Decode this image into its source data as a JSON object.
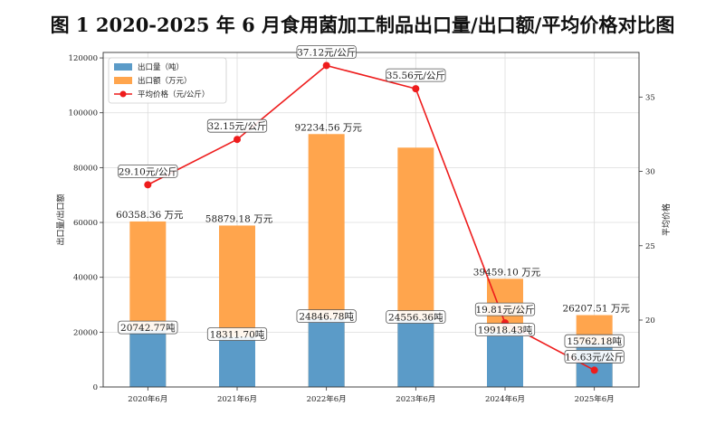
{
  "title": "图 1 2020-2025 年 6 月食用菌加工制品出口量/出口额/平均价格对比图",
  "chart_data": {
    "type": "bar",
    "categories": [
      "2020年6月",
      "2021年6月",
      "2022年6月",
      "2023年6月",
      "2024年6月",
      "2025年6月"
    ],
    "series": [
      {
        "name": "出口量（吨）",
        "kind": "bar",
        "axis": "left",
        "color": "#5b9bc8",
        "values": [
          20742.77,
          18311.7,
          24846.78,
          24556.36,
          19918.43,
          15762.18
        ],
        "labels": [
          "20742.77吨",
          "18311.70吨",
          "24846.78吨",
          "24556.36吨",
          "19918.43吨",
          "15762.18吨"
        ]
      },
      {
        "name": "出口额（万元）",
        "kind": "bar",
        "axis": "left",
        "color": "#ffa54d",
        "values": [
          60358.36,
          58879.18,
          92234.56,
          87285.36,
          39459.1,
          26207.51
        ],
        "labels": [
          "60358.36 万元",
          "58879.18 万元",
          "92234.56 万元",
          "",
          "39459.10 万元",
          "26207.51 万元"
        ]
      },
      {
        "name": "平均价格（元/公斤）",
        "kind": "line",
        "axis": "right",
        "color": "#ee1c1c",
        "values": [
          29.1,
          32.15,
          37.12,
          35.56,
          19.81,
          16.63
        ],
        "labels": [
          "29.10元/公斤",
          "32.15元/公斤",
          "37.12元/公斤",
          "35.56元/公斤",
          "19.81元/公斤",
          "16.63元/公斤"
        ]
      }
    ],
    "ylabel_left": "出口量/出口额",
    "ylabel_right": "平均价格",
    "ylim_left": [
      0,
      122000
    ],
    "yticks_left": [
      0,
      20000,
      40000,
      60000,
      80000,
      100000,
      120000
    ],
    "ylim_right": [
      15.5,
      38.0
    ],
    "yticks_right": [
      20,
      25,
      30,
      35
    ],
    "grid": true,
    "legend_position": "top-left"
  }
}
